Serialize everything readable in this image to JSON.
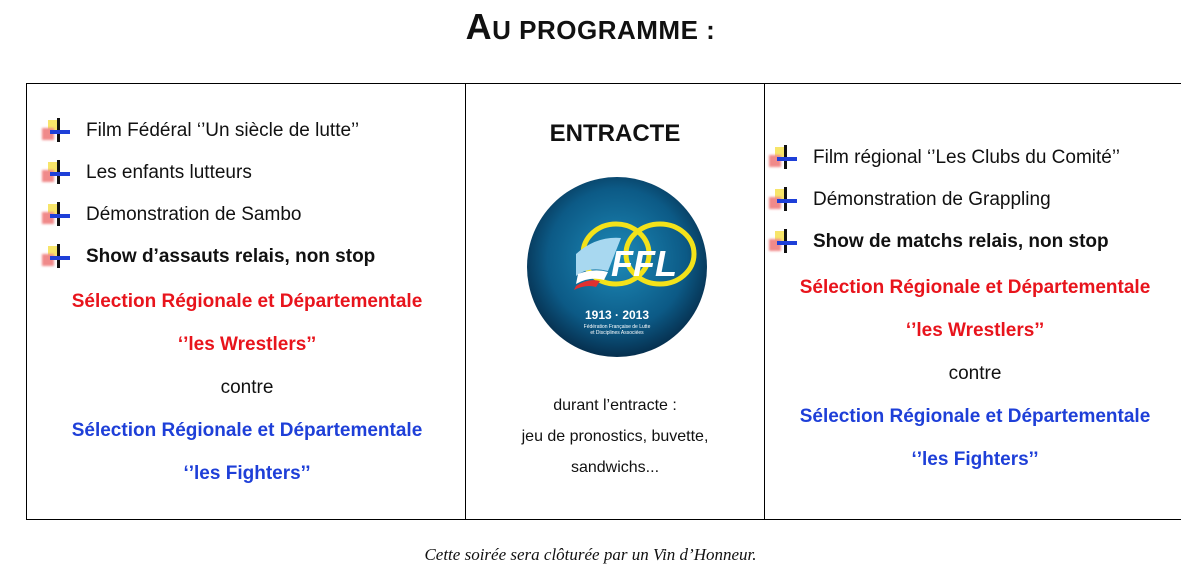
{
  "title": {
    "first_letter": "A",
    "rest": "U PROGRAMME :"
  },
  "left": {
    "items": [
      "Film Fédéral  ‘’Un siècle de lutte’’",
      "Les enfants lutteurs",
      "Démonstration de Sambo",
      "Show d’assauts relais, non stop"
    ],
    "team1": "Sélection Régionale et Départementale",
    "team1_name": "‘’les Wrestlers’’",
    "vs": "contre",
    "team2": "Sélection Régionale et Départementale",
    "team2_name": "‘’les Fighters’’"
  },
  "middle": {
    "heading": "ENTRACTE",
    "logo": {
      "text": "FFL",
      "years": "1913 · 2013",
      "subtitle1": "Fédération Française de Lutte",
      "subtitle2": "et Disciplines Associées"
    },
    "lines": [
      "durant l’entracte :",
      "jeu de pronostics, buvette,",
      "sandwichs..."
    ]
  },
  "right": {
    "items": [
      "Film régional ‘’Les Clubs du Comité’’",
      "Démonstration de Grappling",
      "Show de matchs relais, non stop"
    ],
    "team1": "Sélection Régionale et Départementale",
    "team1_name": "‘’les Wrestlers’’",
    "vs": "contre",
    "team2": "Sélection Régionale et Départementale",
    "team2_name": "‘’les Fighters’’"
  },
  "footer": "Cette soirée sera clôturée par un Vin d’Honneur.",
  "colors": {
    "red": "#e8141c",
    "blue": "#1e3fd8"
  }
}
